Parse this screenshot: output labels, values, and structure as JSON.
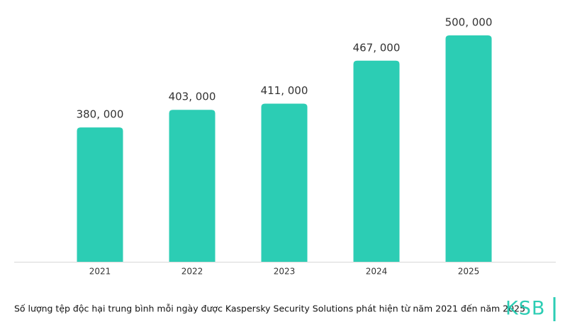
{
  "chart_data": {
    "type": "bar",
    "categories": [
      "2021",
      "2022",
      "2023",
      "2024",
      "2025"
    ],
    "values": [
      380000,
      403000,
      411000,
      467000,
      500000
    ],
    "value_labels": [
      "380, 000",
      "403, 000",
      "411, 000",
      "467, 000",
      "500, 000"
    ],
    "color": "#2ccdb4",
    "ylim": [
      205000,
      500000
    ],
    "caption": "Số lượng tệp độc hại trung bình mỗi ngày được Kaspersky Security Solutions phát hiện từ năm 2021 đến năm 2025",
    "logo": "KSB"
  }
}
